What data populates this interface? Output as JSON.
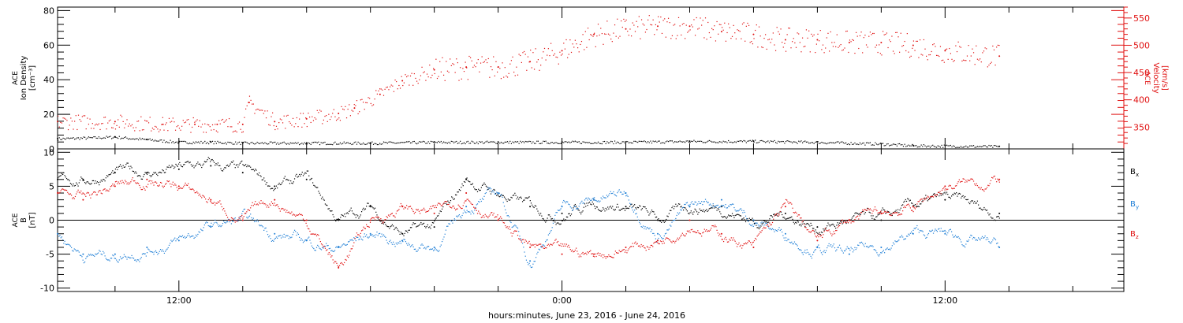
{
  "colors": {
    "black": "#000000",
    "blue": "#1f7fd6",
    "red": "#e01010",
    "axis": "#000000",
    "right_axis": "#e01010"
  },
  "x_axis": {
    "label": "hours:minutes, June 23, 2016 - June 24, 2016",
    "ticks": [
      {
        "hour": 12,
        "label": "12:00"
      },
      {
        "hour": 24,
        "label": "0:00"
      },
      {
        "hour": 36,
        "label": "12:00"
      }
    ],
    "range_hours": [
      8.2,
      41.6
    ]
  },
  "chart_data": [
    {
      "type": "scatter",
      "panel": "plasma",
      "ylabel_lines": [
        "ACE",
        "Ion Density",
        "[cm⁻³]"
      ],
      "ylim": [
        0,
        82
      ],
      "yticks": [
        0,
        20,
        40,
        60,
        80
      ],
      "y2label_lines": [
        "ACE",
        "Velocity",
        "[km/s]"
      ],
      "y2lim": [
        310,
        570
      ],
      "y2ticks": [
        350,
        400,
        450,
        500,
        550
      ],
      "series": [
        {
          "color": "black",
          "axis": "left",
          "x": [
            8.2,
            10,
            11,
            12,
            13,
            14,
            16,
            18,
            20,
            22,
            24,
            26,
            28,
            30,
            32,
            34,
            35,
            37.7
          ],
          "y": [
            6,
            7,
            5.5,
            4,
            4,
            3.5,
            3.5,
            3.5,
            4,
            4,
            4,
            4,
            4.5,
            4.5,
            4,
            3,
            2,
            1.5
          ]
        },
        {
          "color": "red",
          "axis": "right",
          "x": [
            8.2,
            10,
            11.5,
            12.5,
            13.2,
            14.0,
            14.2,
            15.0,
            16.0,
            17.0,
            17.5,
            18.3,
            19,
            20,
            21,
            22,
            23,
            24,
            25,
            26,
            27,
            28,
            29,
            30,
            31,
            32,
            33,
            34,
            35,
            36,
            37.7
          ],
          "y": [
            360,
            360,
            355,
            355,
            355,
            355,
            395,
            360,
            365,
            375,
            385,
            410,
            435,
            455,
            460,
            460,
            470,
            490,
            520,
            530,
            535,
            535,
            525,
            520,
            510,
            510,
            505,
            505,
            500,
            490,
            480
          ]
        }
      ]
    },
    {
      "type": "line",
      "panel": "magnetic",
      "ylabel_lines": [
        "ACE",
        "B",
        "[nT]"
      ],
      "ylim": [
        -10.5,
        10.5
      ],
      "yticks": [
        -10,
        -5,
        0,
        5,
        10
      ],
      "legend_location": "right",
      "series": [
        {
          "name": "B",
          "subscript": "x",
          "color": "black",
          "x": [
            8.2,
            9,
            10,
            11,
            12,
            13,
            14,
            15,
            16,
            17,
            18,
            19,
            20,
            21,
            22,
            23,
            24,
            25,
            26,
            27,
            28,
            29,
            30,
            31,
            32,
            33,
            34,
            35,
            36,
            37.7
          ],
          "y": [
            6,
            6,
            7,
            7,
            7.5,
            8,
            7,
            5,
            6,
            0,
            2,
            -2,
            -1,
            6,
            4,
            2,
            1,
            3,
            2,
            0,
            2,
            2,
            0,
            1,
            -1,
            0,
            0,
            2,
            3,
            1
          ]
        },
        {
          "name": "B",
          "subscript": "y",
          "color": "blue",
          "x": [
            8.2,
            9,
            10,
            11,
            12,
            13,
            14,
            15,
            16,
            17,
            18,
            19,
            20,
            21,
            22,
            23,
            24,
            25,
            26,
            27,
            28,
            29,
            30,
            31,
            32,
            33,
            34,
            35,
            36,
            37.7
          ],
          "y": [
            -2,
            -5,
            -5,
            -4,
            -3,
            -1,
            0,
            -2,
            -3,
            -4,
            -2,
            -3,
            -4,
            2,
            4,
            -6,
            2,
            3,
            4,
            -2,
            2,
            3,
            0,
            -2,
            -4,
            -5,
            -4,
            -2,
            -2,
            -4
          ]
        },
        {
          "name": "B",
          "subscript": "z",
          "color": "red",
          "x": [
            8.2,
            9,
            10,
            11,
            12,
            13,
            14,
            15,
            16,
            17,
            18,
            19,
            20,
            21,
            22,
            23,
            24,
            25,
            26,
            27,
            28,
            29,
            30,
            31,
            32,
            33,
            34,
            35,
            36,
            37.7
          ],
          "y": [
            4,
            3,
            5,
            6,
            5,
            3,
            0,
            3,
            0,
            -7,
            0,
            2,
            1,
            4,
            0,
            -4,
            -5,
            -5,
            -4,
            -3,
            0,
            -2,
            -4,
            2,
            -3,
            0,
            1,
            2,
            5,
            6
          ]
        }
      ]
    }
  ]
}
